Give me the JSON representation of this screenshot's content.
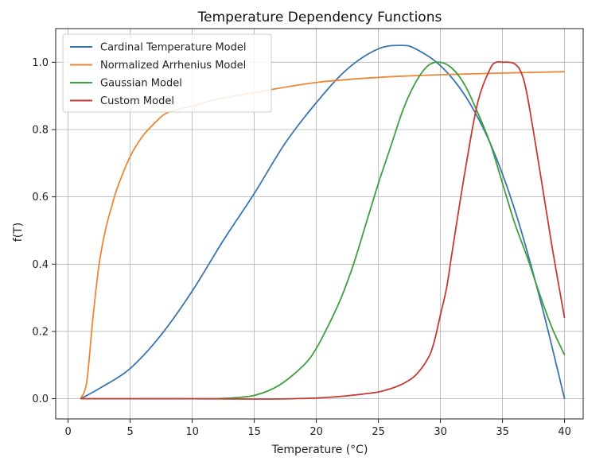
{
  "chart_data": {
    "type": "line",
    "title": "Temperature Dependency Functions",
    "xlabel": "Temperature (°C)",
    "ylabel": "f(T)",
    "xlim": [
      -1,
      41.5
    ],
    "ylim": [
      -0.06,
      1.1
    ],
    "xticks": [
      0,
      5,
      10,
      15,
      20,
      25,
      30,
      35,
      40
    ],
    "yticks": [
      0.0,
      0.2,
      0.4,
      0.6,
      0.8,
      1.0
    ],
    "xtick_labels": [
      "0",
      "5",
      "10",
      "15",
      "20",
      "25",
      "30",
      "35",
      "40"
    ],
    "ytick_labels": [
      "0.0",
      "0.2",
      "0.4",
      "0.6",
      "0.8",
      "1.0"
    ],
    "grid": true,
    "legend_position": "top-left",
    "series": [
      {
        "name": "Cardinal Temperature Model",
        "color": "#3b75af",
        "x": [
          1,
          2.5,
          5,
          7.5,
          10,
          12.5,
          15,
          17.5,
          20,
          22.5,
          25,
          26.9,
          28,
          30,
          32,
          34,
          36,
          38,
          40
        ],
        "y": [
          0.0,
          0.03,
          0.09,
          0.19,
          0.32,
          0.47,
          0.61,
          0.76,
          0.88,
          0.98,
          1.04,
          1.05,
          1.04,
          0.99,
          0.9,
          0.76,
          0.56,
          0.3,
          0.0
        ]
      },
      {
        "name": "Normalized Arrhenius Model",
        "color": "#ef8636",
        "x": [
          1,
          1.5,
          2,
          2.5,
          3,
          3.5,
          4,
          5,
          6,
          7,
          8,
          10,
          12,
          15,
          20,
          25,
          30,
          35,
          40
        ],
        "y": [
          0.0,
          0.05,
          0.24,
          0.4,
          0.5,
          0.57,
          0.63,
          0.72,
          0.78,
          0.82,
          0.85,
          0.87,
          0.89,
          0.91,
          0.94,
          0.955,
          0.963,
          0.968,
          0.972
        ]
      },
      {
        "name": "Gaussian Model",
        "color": "#3f9f3f",
        "x": [
          1,
          5,
          10,
          12.5,
          15,
          17,
          19,
          20,
          21,
          22,
          23,
          24,
          25,
          26,
          27,
          28,
          29,
          30,
          31,
          32,
          33,
          34,
          35,
          36,
          37,
          38,
          39,
          40
        ],
        "y": [
          0.0,
          0.0,
          0.0,
          0.001,
          0.01,
          0.04,
          0.1,
          0.15,
          0.22,
          0.3,
          0.4,
          0.52,
          0.64,
          0.75,
          0.86,
          0.94,
          0.99,
          1.0,
          0.98,
          0.93,
          0.85,
          0.76,
          0.64,
          0.52,
          0.42,
          0.31,
          0.21,
          0.13
        ]
      },
      {
        "name": "Custom Model",
        "color": "#c53a32",
        "x": [
          1,
          5,
          10,
          15,
          18,
          20,
          22,
          24,
          25,
          26,
          27,
          28,
          29,
          29.5,
          30,
          30.5,
          31,
          32,
          33,
          34,
          34.5,
          35,
          35.5,
          36,
          36.5,
          37,
          38,
          39,
          40
        ],
        "y": [
          0.0,
          0.0,
          0.0,
          -0.001,
          0.0,
          0.002,
          0.007,
          0.015,
          0.02,
          0.03,
          0.045,
          0.07,
          0.12,
          0.17,
          0.25,
          0.33,
          0.45,
          0.68,
          0.88,
          0.98,
          1.0,
          1.0,
          1.0,
          0.995,
          0.97,
          0.9,
          0.68,
          0.45,
          0.24
        ]
      }
    ]
  }
}
